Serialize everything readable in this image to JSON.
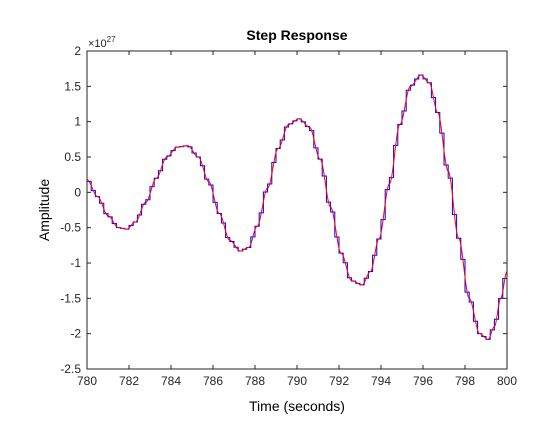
{
  "chart_data": {
    "type": "line",
    "title": "Step Response",
    "xlabel": "Time (seconds)",
    "ylabel": "Amplitude",
    "xlim": [
      780,
      800
    ],
    "ylim": [
      -2.5,
      2
    ],
    "y_exponent_label": "×10",
    "y_exponent_power": "27",
    "y_scale": 1e+27,
    "x_ticks": [
      "780",
      "782",
      "784",
      "786",
      "788",
      "790",
      "792",
      "794",
      "796",
      "798",
      "800"
    ],
    "y_ticks": [
      "-2.5",
      "-2",
      "-1.5",
      "-1",
      "-0.5",
      "0",
      "0.5",
      "1",
      "1.5",
      "2"
    ],
    "grid": false,
    "series": [
      {
        "style": "continuous",
        "color": "#ff0000",
        "x": [
          780.0,
          780.5,
          781.0,
          781.5,
          781.9,
          782.3,
          782.8,
          783.3,
          783.8,
          784.3,
          784.8,
          785.3,
          785.8,
          786.3,
          786.8,
          787.3,
          787.7,
          788.1,
          788.6,
          789.1,
          789.6,
          790.1,
          790.6,
          791.1,
          791.6,
          792.1,
          792.6,
          793.1,
          793.5,
          793.9,
          794.4,
          794.9,
          795.4,
          795.9,
          796.3,
          796.7,
          797.2,
          797.7,
          798.2,
          798.7,
          799.1,
          799.4,
          799.7,
          800.0
        ],
        "values": [
          0.18,
          -0.06,
          -0.33,
          -0.5,
          -0.52,
          -0.42,
          -0.14,
          0.2,
          0.5,
          0.64,
          0.66,
          0.5,
          0.15,
          -0.3,
          -0.68,
          -0.83,
          -0.78,
          -0.48,
          0.06,
          0.62,
          0.96,
          1.04,
          0.92,
          0.47,
          -0.21,
          -0.86,
          -1.25,
          -1.31,
          -1.12,
          -0.66,
          0.12,
          0.96,
          1.5,
          1.66,
          1.55,
          1.13,
          0.3,
          -0.65,
          -1.5,
          -2.0,
          -2.08,
          -1.9,
          -1.5,
          -1.12
        ]
      },
      {
        "style": "stairs",
        "color": "#0000ff",
        "sample_time": 0.2
      }
    ]
  }
}
